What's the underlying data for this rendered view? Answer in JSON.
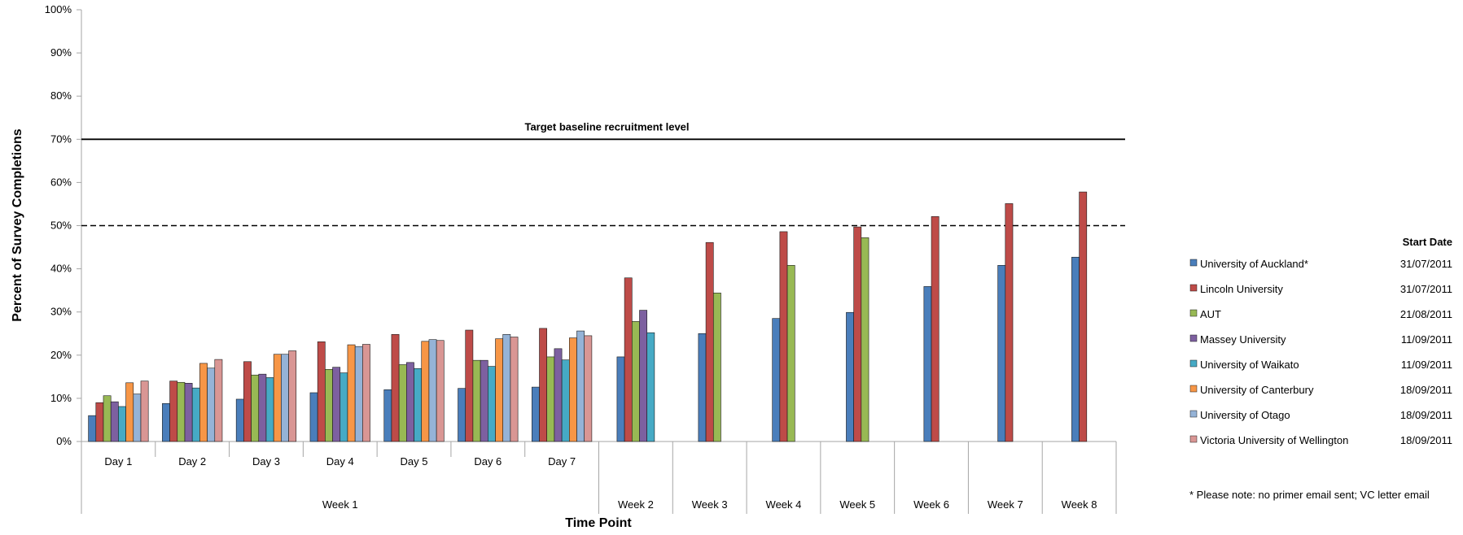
{
  "chart_data": {
    "type": "bar",
    "xlabel": "Time Point",
    "ylabel": "Percent of Survey Completions",
    "ylim": [
      0,
      100
    ],
    "y_ticks": [
      "0%",
      "10%",
      "20%",
      "30%",
      "40%",
      "50%",
      "60%",
      "70%",
      "80%",
      "90%",
      "100%"
    ],
    "categories": [
      "Day 1",
      "Day 2",
      "Day 3",
      "Day 4",
      "Day 5",
      "Day 6",
      "Day 7",
      "Week 2",
      "Week 3",
      "Week 4",
      "Week 5",
      "Week 6",
      "Week 7",
      "Week 8"
    ],
    "group_label": "Week 1",
    "series": [
      {
        "name": "University of Auckland*",
        "start_date": "31/07/2011",
        "color": "#4a7ebb",
        "values": [
          6.0,
          8.8,
          9.8,
          11.3,
          12.0,
          12.3,
          12.6,
          19.6,
          25.0,
          28.5,
          29.9,
          35.9,
          40.8,
          42.7
        ]
      },
      {
        "name": "Lincoln University",
        "start_date": "31/07/2011",
        "color": "#be4b48",
        "values": [
          9.0,
          14.0,
          18.5,
          23.1,
          24.8,
          25.8,
          26.2,
          37.9,
          46.1,
          48.6,
          49.7,
          52.1,
          55.1,
          57.8
        ]
      },
      {
        "name": "AUT",
        "start_date": "21/08/2011",
        "color": "#98b954",
        "values": [
          10.6,
          13.7,
          15.4,
          16.7,
          17.8,
          18.8,
          19.6,
          27.8,
          34.4,
          40.8,
          47.2,
          null,
          null,
          null
        ]
      },
      {
        "name": "Massey University",
        "start_date": "11/09/2011",
        "color": "#7d60a0",
        "values": [
          9.2,
          13.5,
          15.6,
          17.2,
          18.3,
          18.8,
          21.5,
          30.4,
          null,
          null,
          null,
          null,
          null,
          null
        ]
      },
      {
        "name": "University of Waikato",
        "start_date": "11/09/2011",
        "color": "#46aac5",
        "values": [
          8.1,
          12.4,
          14.8,
          15.9,
          16.9,
          17.4,
          18.9,
          25.2,
          null,
          null,
          null,
          null,
          null,
          null
        ]
      },
      {
        "name": "University of Canterbury",
        "start_date": "18/09/2011",
        "color": "#f79646",
        "values": [
          13.6,
          18.1,
          20.2,
          22.4,
          23.2,
          23.8,
          24.0,
          null,
          null,
          null,
          null,
          null,
          null,
          null
        ]
      },
      {
        "name": "University of Otago",
        "start_date": "18/09/2011",
        "color": "#95b3d7",
        "values": [
          11.0,
          17.0,
          20.2,
          22.0,
          23.6,
          24.8,
          25.6,
          null,
          null,
          null,
          null,
          null,
          null,
          null
        ]
      },
      {
        "name": "Victoria University of Wellington",
        "start_date": "18/09/2011",
        "color": "#d99694",
        "values": [
          14.0,
          19.0,
          21.0,
          22.5,
          23.4,
          24.2,
          24.5,
          null,
          null,
          null,
          null,
          null,
          null,
          null
        ]
      }
    ],
    "reference_lines": [
      {
        "value": 70,
        "style": "solid",
        "label": "Target baseline recruitment level"
      },
      {
        "value": 50,
        "style": "dashed",
        "label": ""
      }
    ],
    "legend": {
      "position": "right",
      "header": "Start Date"
    },
    "footnote": "* Please note: no primer email sent; VC letter email",
    "grid": false
  }
}
